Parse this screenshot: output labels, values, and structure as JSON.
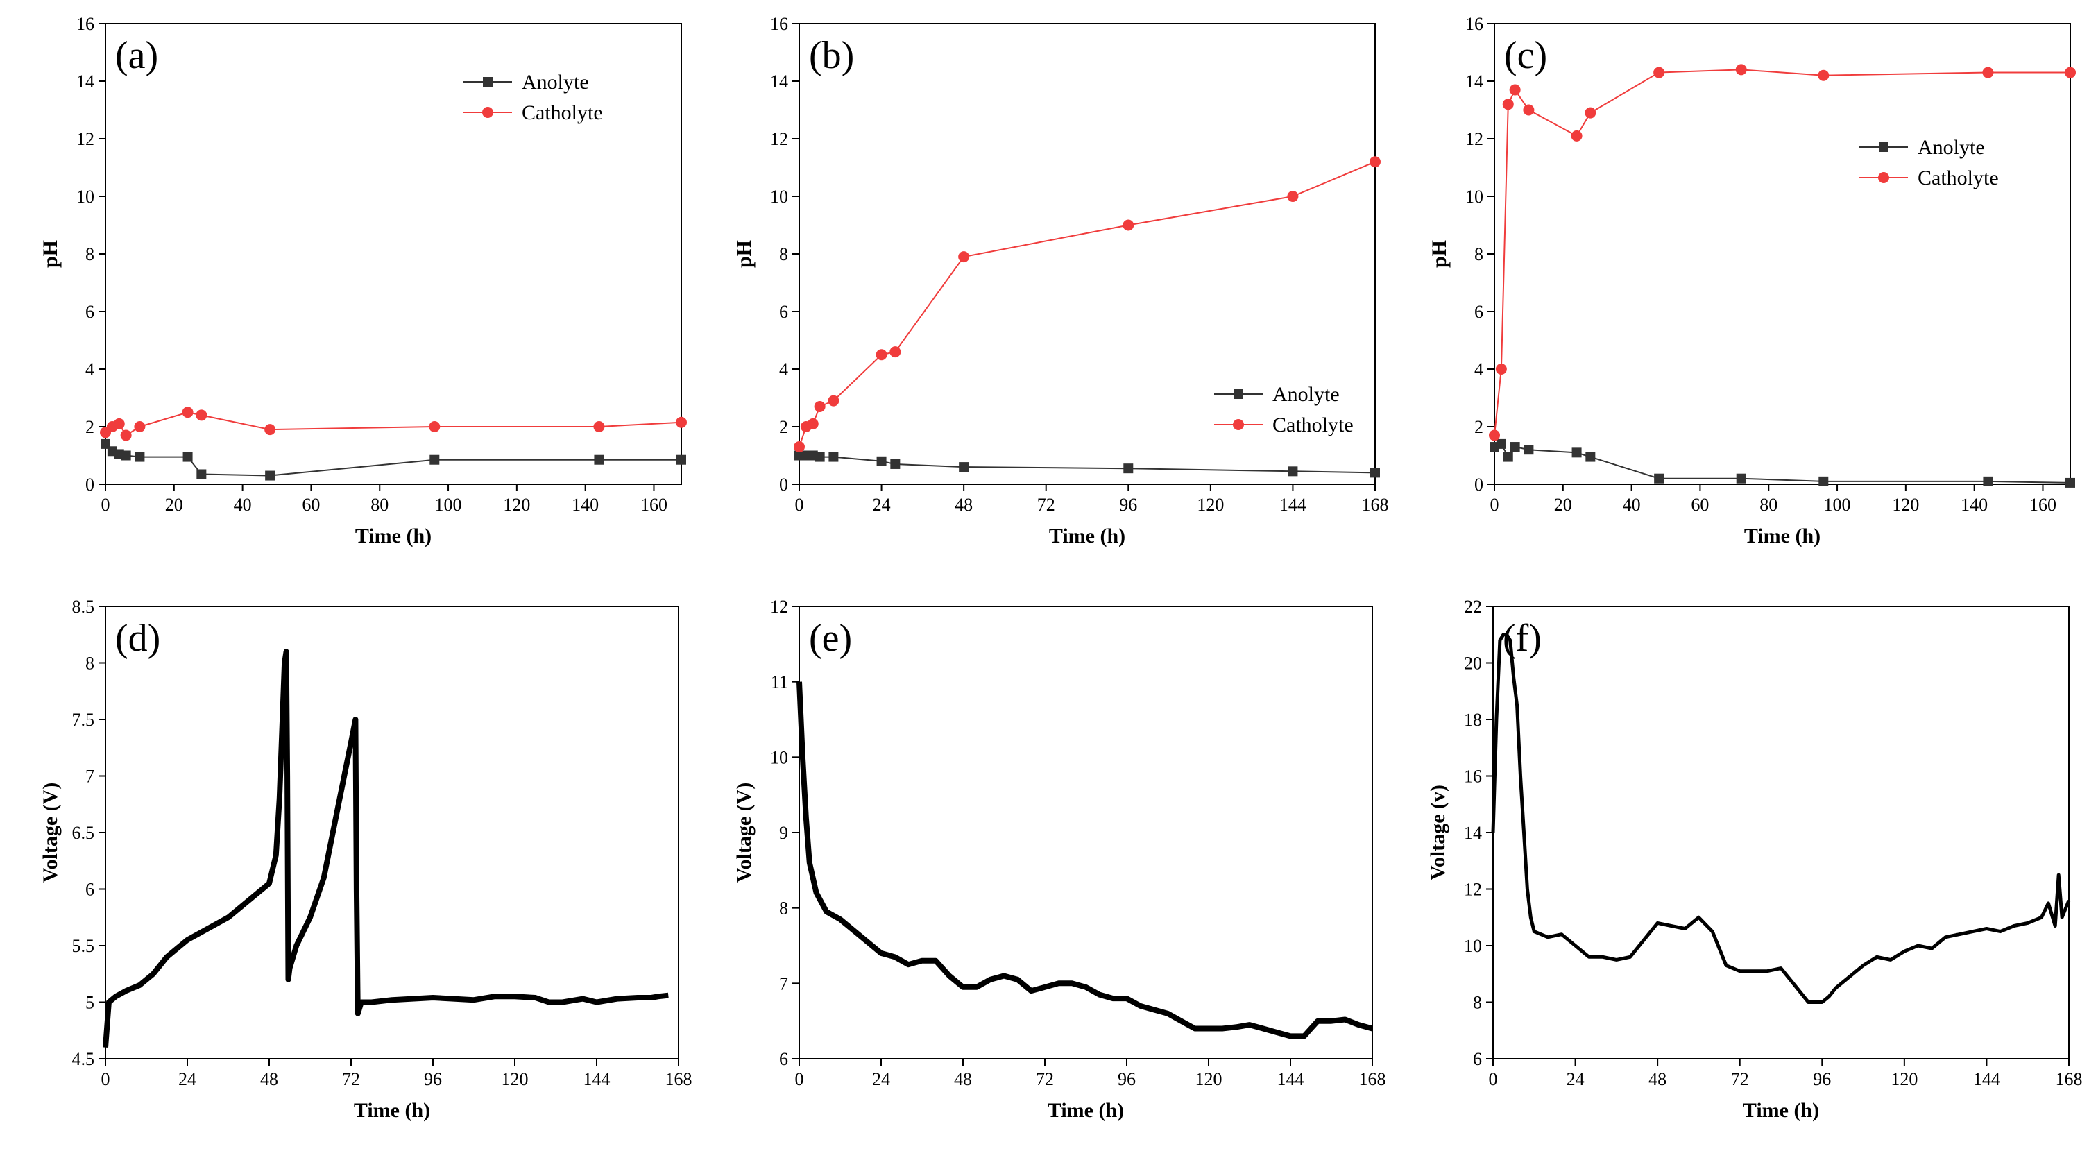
{
  "chart_data": [
    {
      "type": "line",
      "panel_label": "(a)",
      "xlabel": "Time (h)",
      "ylabel": "pH",
      "xlim": [
        0,
        168
      ],
      "ylim": [
        0,
        16
      ],
      "x_ticks": [
        0,
        20,
        40,
        60,
        80,
        100,
        120,
        140,
        160
      ],
      "y_ticks": [
        0,
        2,
        4,
        6,
        8,
        10,
        12,
        14,
        16
      ],
      "grid": false,
      "legend": "top-right",
      "series": [
        {
          "name": "Anolyte",
          "color": "#333333",
          "marker": "square",
          "x": [
            0,
            2,
            4,
            6,
            10,
            24,
            28,
            48,
            96,
            144,
            168
          ],
          "y": [
            1.4,
            1.15,
            1.05,
            1.0,
            0.95,
            0.95,
            0.35,
            0.3,
            0.85,
            0.85,
            0.85
          ]
        },
        {
          "name": "Catholyte",
          "color": "#f03c3c",
          "marker": "circle",
          "x": [
            0,
            2,
            4,
            6,
            10,
            24,
            28,
            48,
            96,
            144,
            168
          ],
          "y": [
            1.8,
            2.0,
            2.1,
            1.7,
            2.0,
            2.5,
            2.4,
            1.9,
            2.0,
            2.0,
            2.15
          ]
        }
      ]
    },
    {
      "type": "line",
      "panel_label": "(b)",
      "xlabel": "Time (h)",
      "ylabel": "pH",
      "xlim": [
        0,
        168
      ],
      "ylim": [
        0,
        16
      ],
      "x_ticks": [
        0,
        24,
        48,
        72,
        96,
        120,
        144,
        168
      ],
      "y_ticks": [
        0,
        2,
        4,
        6,
        8,
        10,
        12,
        14,
        16
      ],
      "grid": false,
      "legend": "bottom-right",
      "series": [
        {
          "name": "Anolyte",
          "color": "#333333",
          "marker": "square",
          "x": [
            0,
            2,
            4,
            6,
            10,
            24,
            28,
            48,
            96,
            144,
            168
          ],
          "y": [
            1.0,
            1.0,
            1.0,
            0.95,
            0.95,
            0.8,
            0.7,
            0.6,
            0.55,
            0.45,
            0.4
          ]
        },
        {
          "name": "Catholyte",
          "color": "#f03c3c",
          "marker": "circle",
          "x": [
            0,
            2,
            4,
            6,
            10,
            24,
            28,
            48,
            96,
            144,
            168
          ],
          "y": [
            1.3,
            2.0,
            2.1,
            2.7,
            2.9,
            4.5,
            4.6,
            7.9,
            9.0,
            10.0,
            11.2
          ]
        }
      ]
    },
    {
      "type": "line",
      "panel_label": "(c)",
      "xlabel": "Time (h)",
      "ylabel": "pH",
      "xlim": [
        0,
        168
      ],
      "ylim": [
        0,
        16
      ],
      "x_ticks": [
        0,
        20,
        40,
        60,
        80,
        100,
        120,
        140,
        160
      ],
      "y_ticks": [
        0,
        2,
        4,
        6,
        8,
        10,
        12,
        14,
        16
      ],
      "grid": false,
      "legend": "upper-right",
      "series": [
        {
          "name": "Anolyte",
          "color": "#333333",
          "marker": "square",
          "x": [
            0,
            2,
            4,
            6,
            10,
            24,
            28,
            48,
            72,
            96,
            144,
            168
          ],
          "y": [
            1.3,
            1.4,
            0.95,
            1.3,
            1.2,
            1.1,
            0.95,
            0.2,
            0.2,
            0.1,
            0.1,
            0.05
          ]
        },
        {
          "name": "Catholyte",
          "color": "#f03c3c",
          "marker": "circle",
          "x": [
            0,
            2,
            4,
            6,
            10,
            24,
            28,
            48,
            72,
            96,
            144,
            168
          ],
          "y": [
            1.7,
            4.0,
            13.2,
            13.7,
            13.0,
            12.1,
            12.9,
            14.3,
            14.4,
            14.2,
            14.3,
            14.3
          ]
        }
      ]
    },
    {
      "type": "line",
      "panel_label": "(d)",
      "xlabel": "Time (h)",
      "ylabel": "Voltage (V)",
      "xlim": [
        0,
        168
      ],
      "ylim": [
        4.5,
        8.5
      ],
      "x_ticks": [
        0,
        24,
        48,
        72,
        96,
        120,
        144,
        168
      ],
      "y_ticks": [
        4.5,
        5.0,
        5.5,
        6.0,
        6.5,
        7.0,
        7.5,
        8.0,
        8.5
      ],
      "grid": false,
      "series": [
        {
          "name": "",
          "color": "#000000",
          "marker": "square",
          "x": [
            0,
            1,
            3,
            6,
            10,
            14,
            18,
            24,
            30,
            36,
            42,
            48,
            50,
            51,
            52,
            52.5,
            53,
            53.3,
            53.6,
            54,
            56,
            60,
            64,
            68,
            72,
            73.3,
            73.6,
            74,
            75,
            78,
            84,
            90,
            96,
            102,
            108,
            114,
            120,
            126,
            130,
            134,
            138,
            140,
            144,
            150,
            156,
            160,
            162,
            165
          ],
          "y": [
            4.6,
            5.0,
            5.05,
            5.1,
            5.15,
            5.25,
            5.4,
            5.55,
            5.65,
            5.75,
            5.9,
            6.05,
            6.3,
            6.8,
            7.6,
            8.0,
            8.1,
            7.0,
            5.2,
            5.3,
            5.5,
            5.75,
            6.1,
            6.7,
            7.3,
            7.5,
            6.0,
            4.9,
            5.0,
            5.0,
            5.02,
            5.03,
            5.04,
            5.03,
            5.02,
            5.05,
            5.05,
            5.04,
            5.0,
            5.0,
            5.02,
            5.03,
            5.0,
            5.03,
            5.04,
            5.04,
            5.05,
            5.06
          ]
        }
      ]
    },
    {
      "type": "line",
      "panel_label": "(e)",
      "xlabel": "Time (h)",
      "ylabel": "Voltage (V)",
      "xlim": [
        0,
        168
      ],
      "ylim": [
        6,
        12
      ],
      "x_ticks": [
        0,
        24,
        48,
        72,
        96,
        120,
        144,
        168
      ],
      "y_ticks": [
        6,
        7,
        8,
        9,
        10,
        11,
        12
      ],
      "grid": false,
      "series": [
        {
          "name": "",
          "color": "#000000",
          "marker": "square",
          "x": [
            0,
            1,
            2,
            3,
            5,
            8,
            12,
            16,
            20,
            24,
            28,
            32,
            36,
            40,
            44,
            48,
            52,
            56,
            60,
            64,
            68,
            72,
            76,
            80,
            84,
            88,
            92,
            96,
            100,
            104,
            108,
            112,
            116,
            120,
            124,
            128,
            132,
            136,
            140,
            144,
            148,
            150,
            152,
            156,
            160,
            164,
            168
          ],
          "y": [
            11.0,
            10.0,
            9.2,
            8.6,
            8.2,
            7.95,
            7.85,
            7.7,
            7.55,
            7.4,
            7.35,
            7.25,
            7.3,
            7.3,
            7.1,
            6.95,
            6.95,
            7.05,
            7.1,
            7.05,
            6.9,
            6.95,
            7.0,
            7.0,
            6.95,
            6.85,
            6.8,
            6.8,
            6.7,
            6.65,
            6.6,
            6.5,
            6.4,
            6.4,
            6.4,
            6.42,
            6.45,
            6.4,
            6.35,
            6.3,
            6.3,
            6.4,
            6.5,
            6.5,
            6.52,
            6.45,
            6.4
          ]
        }
      ]
    },
    {
      "type": "line",
      "panel_label": "(f)",
      "xlabel": "Time (h)",
      "ylabel": "Voltage (v)",
      "xlim": [
        0,
        168
      ],
      "ylim": [
        6,
        22
      ],
      "x_ticks": [
        0,
        24,
        48,
        72,
        96,
        120,
        144,
        168
      ],
      "y_ticks": [
        6,
        8,
        10,
        12,
        14,
        16,
        18,
        20,
        22
      ],
      "grid": false,
      "series": [
        {
          "name": "",
          "color": "#000000",
          "marker": "line",
          "x": [
            0,
            1,
            2,
            3,
            4,
            5,
            6,
            7,
            8,
            9,
            10,
            11,
            12,
            14,
            16,
            20,
            24,
            28,
            32,
            36,
            40,
            44,
            48,
            52,
            56,
            60,
            64,
            68,
            72,
            76,
            80,
            84,
            88,
            92,
            96,
            98,
            100,
            104,
            108,
            112,
            116,
            120,
            124,
            128,
            132,
            136,
            140,
            144,
            148,
            152,
            156,
            160,
            162,
            164,
            165,
            166,
            168
          ],
          "y": [
            14,
            18,
            20.8,
            21.0,
            21.0,
            20.8,
            19.5,
            18.5,
            16,
            14,
            12,
            11,
            10.5,
            10.4,
            10.3,
            10.4,
            10.0,
            9.6,
            9.6,
            9.5,
            9.6,
            10.2,
            10.8,
            10.7,
            10.6,
            11.0,
            10.5,
            9.3,
            9.1,
            9.1,
            9.1,
            9.2,
            8.6,
            8.0,
            8.0,
            8.2,
            8.5,
            8.9,
            9.3,
            9.6,
            9.5,
            9.8,
            10.0,
            9.9,
            10.3,
            10.4,
            10.5,
            10.6,
            10.5,
            10.7,
            10.8,
            11.0,
            11.5,
            10.7,
            12.5,
            11.0,
            11.6
          ]
        }
      ]
    }
  ]
}
